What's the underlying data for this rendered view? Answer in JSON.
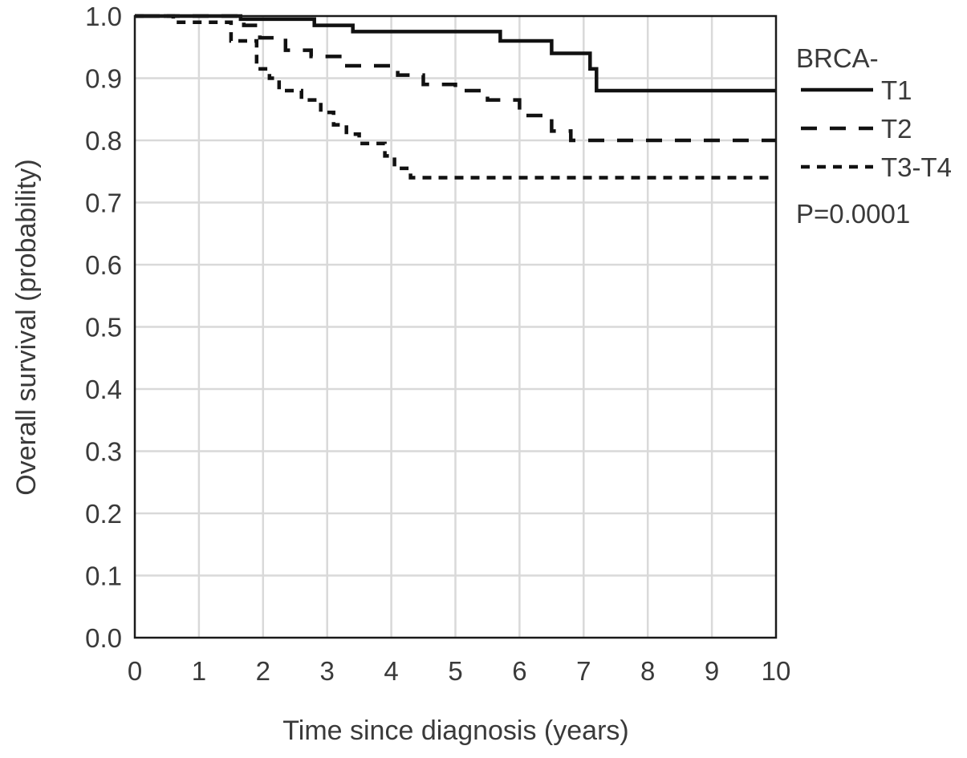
{
  "chart_data": {
    "type": "line",
    "step": true,
    "title": "",
    "xlabel": "Time since diagnosis (years)",
    "ylabel": "Overall survival (probability)",
    "xlim": [
      0,
      10
    ],
    "ylim": [
      0,
      1.0
    ],
    "x_ticks": [
      "0",
      "1",
      "2",
      "3",
      "4",
      "5",
      "6",
      "7",
      "8",
      "9",
      "10"
    ],
    "y_ticks": [
      "0.0",
      "0.1",
      "0.2",
      "0.3",
      "0.4",
      "0.5",
      "0.6",
      "0.7",
      "0.8",
      "0.9",
      "1.0"
    ],
    "grid": true,
    "legend": {
      "title": "BRCA-",
      "placement": "right",
      "annotation": "P=0.0001"
    },
    "series": [
      {
        "name": "T1",
        "line_style": "solid",
        "color": "#111111",
        "points": [
          [
            0,
            1.0
          ],
          [
            1.65,
            0.995
          ],
          [
            2.8,
            0.985
          ],
          [
            3.4,
            0.975
          ],
          [
            5.7,
            0.96
          ],
          [
            6.5,
            0.94
          ],
          [
            7.1,
            0.915
          ],
          [
            7.2,
            0.88
          ],
          [
            10,
            0.88
          ]
        ]
      },
      {
        "name": "T2",
        "line_style": "dashed",
        "color": "#111111",
        "points": [
          [
            0,
            1.0
          ],
          [
            1.7,
            0.985
          ],
          [
            1.95,
            0.965
          ],
          [
            2.35,
            0.945
          ],
          [
            2.75,
            0.935
          ],
          [
            3.25,
            0.92
          ],
          [
            4.1,
            0.905
          ],
          [
            4.5,
            0.89
          ],
          [
            5.0,
            0.88
          ],
          [
            5.5,
            0.865
          ],
          [
            6.0,
            0.84
          ],
          [
            6.5,
            0.815
          ],
          [
            6.8,
            0.8
          ],
          [
            10,
            0.8
          ]
        ]
      },
      {
        "name": "T3-T4",
        "line_style": "dotted",
        "color": "#111111",
        "points": [
          [
            0,
            1.0
          ],
          [
            0.6,
            0.99
          ],
          [
            1.5,
            0.96
          ],
          [
            1.9,
            0.915
          ],
          [
            2.1,
            0.9
          ],
          [
            2.25,
            0.88
          ],
          [
            2.6,
            0.865
          ],
          [
            2.9,
            0.845
          ],
          [
            3.1,
            0.825
          ],
          [
            3.3,
            0.81
          ],
          [
            3.5,
            0.795
          ],
          [
            3.9,
            0.775
          ],
          [
            4.05,
            0.755
          ],
          [
            4.3,
            0.74
          ],
          [
            10,
            0.74
          ]
        ]
      }
    ]
  }
}
